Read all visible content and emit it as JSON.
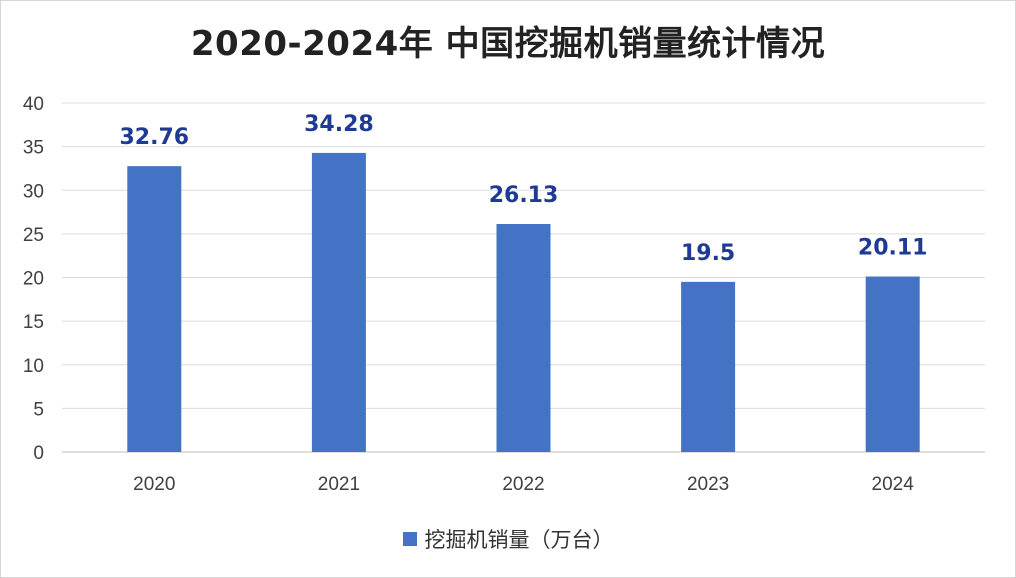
{
  "chart_data": {
    "type": "bar",
    "title": "2020-2024年 中国挖掘机销量统计情况",
    "categories": [
      "2020",
      "2021",
      "2022",
      "2023",
      "2024"
    ],
    "series": [
      {
        "name": "挖掘机销量（万台）",
        "values": [
          32.76,
          34.28,
          26.13,
          19.5,
          20.11
        ],
        "data_labels": [
          "32.76",
          "34.28",
          "26.13",
          "19.5",
          "20.11"
        ],
        "color": "#4472C4"
      }
    ],
    "y_ticks": [
      "0",
      "5",
      "10",
      "15",
      "20",
      "25",
      "30",
      "35",
      "40"
    ],
    "ylim": [
      0,
      40
    ],
    "grid": true,
    "legend_position": "bottom"
  }
}
